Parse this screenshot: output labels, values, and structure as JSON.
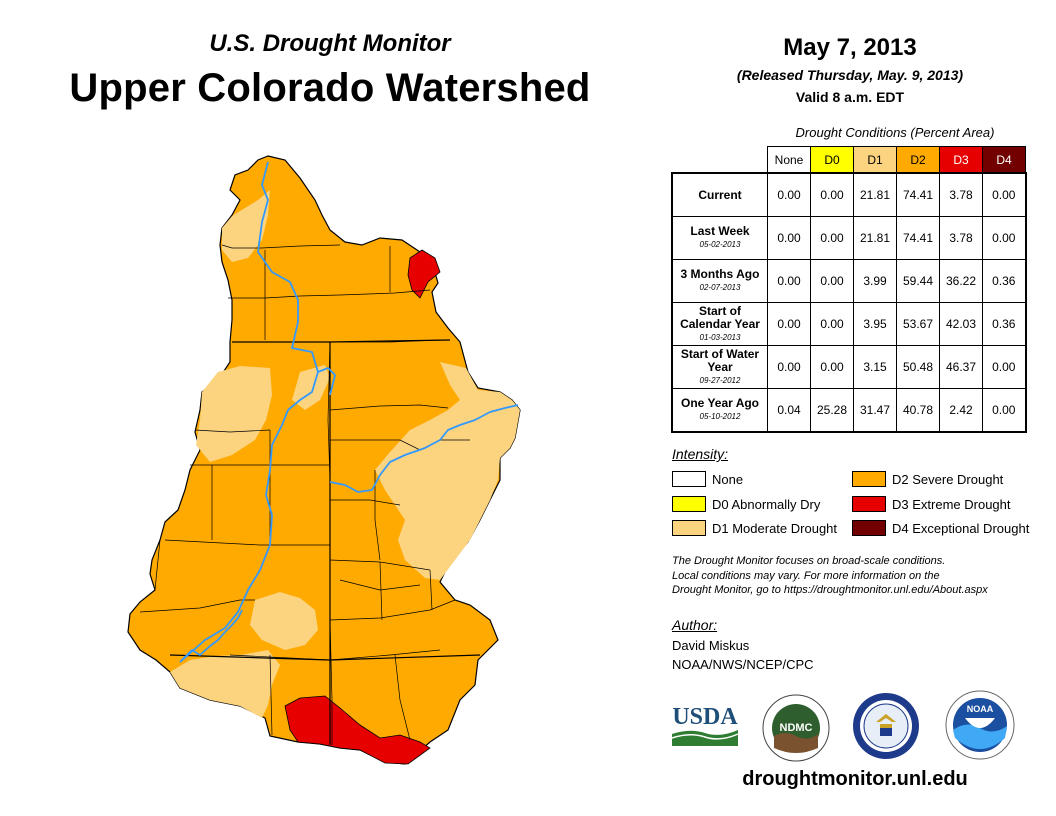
{
  "header": {
    "subtitle": "U.S. Drought Monitor",
    "title": "Upper Colorado Watershed",
    "date": "May 7, 2013",
    "released": "(Released Thursday, May. 9, 2013)",
    "valid": "Valid 8 a.m. EDT"
  },
  "conditions": {
    "title": "Drought Conditions (Percent Area)",
    "columns": [
      "None",
      "D0",
      "D1",
      "D2",
      "D3",
      "D4"
    ],
    "rows": [
      {
        "label": "Current",
        "date": "",
        "values": [
          "0.00",
          "0.00",
          "21.81",
          "74.41",
          "3.78",
          "0.00"
        ]
      },
      {
        "label": "Last Week",
        "date": "05-02-2013",
        "values": [
          "0.00",
          "0.00",
          "21.81",
          "74.41",
          "3.78",
          "0.00"
        ]
      },
      {
        "label": "3 Months Ago",
        "date": "02-07-2013",
        "values": [
          "0.00",
          "0.00",
          "3.99",
          "59.44",
          "36.22",
          "0.36"
        ]
      },
      {
        "label": "Start of Calendar Year",
        "date": "01-03-2013",
        "values": [
          "0.00",
          "0.00",
          "3.95",
          "53.67",
          "42.03",
          "0.36"
        ]
      },
      {
        "label": "Start of Water Year",
        "date": "09-27-2012",
        "values": [
          "0.00",
          "0.00",
          "3.15",
          "50.48",
          "46.37",
          "0.00"
        ]
      },
      {
        "label": "One Year Ago",
        "date": "05-10-2012",
        "values": [
          "0.04",
          "25.28",
          "31.47",
          "40.78",
          "2.42",
          "0.00"
        ]
      }
    ]
  },
  "legend": {
    "title": "Intensity:",
    "items": [
      {
        "label": "None",
        "color": "#ffffff"
      },
      {
        "label": "D0 Abnormally Dry",
        "color": "#ffff00"
      },
      {
        "label": "D1 Moderate Drought",
        "color": "#fcd37f"
      },
      {
        "label": "D2 Severe Drought",
        "color": "#ffaa00"
      },
      {
        "label": "D3 Extreme Drought",
        "color": "#e60000"
      },
      {
        "label": "D4 Exceptional Drought",
        "color": "#730000"
      }
    ]
  },
  "disclaimer": {
    "line1": "The Drought Monitor focuses on broad-scale conditions.",
    "line2": "Local conditions may vary. For more information on the",
    "line3": "Drought Monitor, go to https://droughtmonitor.unl.edu/About.aspx"
  },
  "author": {
    "title": "Author:",
    "name": "David Miskus",
    "org": "NOAA/NWS/NCEP/CPC"
  },
  "logos": {
    "usda": "USDA",
    "ndmc": "NDMC",
    "noaa": "NOAA"
  },
  "url": "droughtmonitor.unl.edu",
  "colors": {
    "d1": "#fcd37f",
    "d2": "#ffaa00",
    "d3": "#e60000",
    "river": "#3399ff",
    "boundary": "#000000"
  }
}
